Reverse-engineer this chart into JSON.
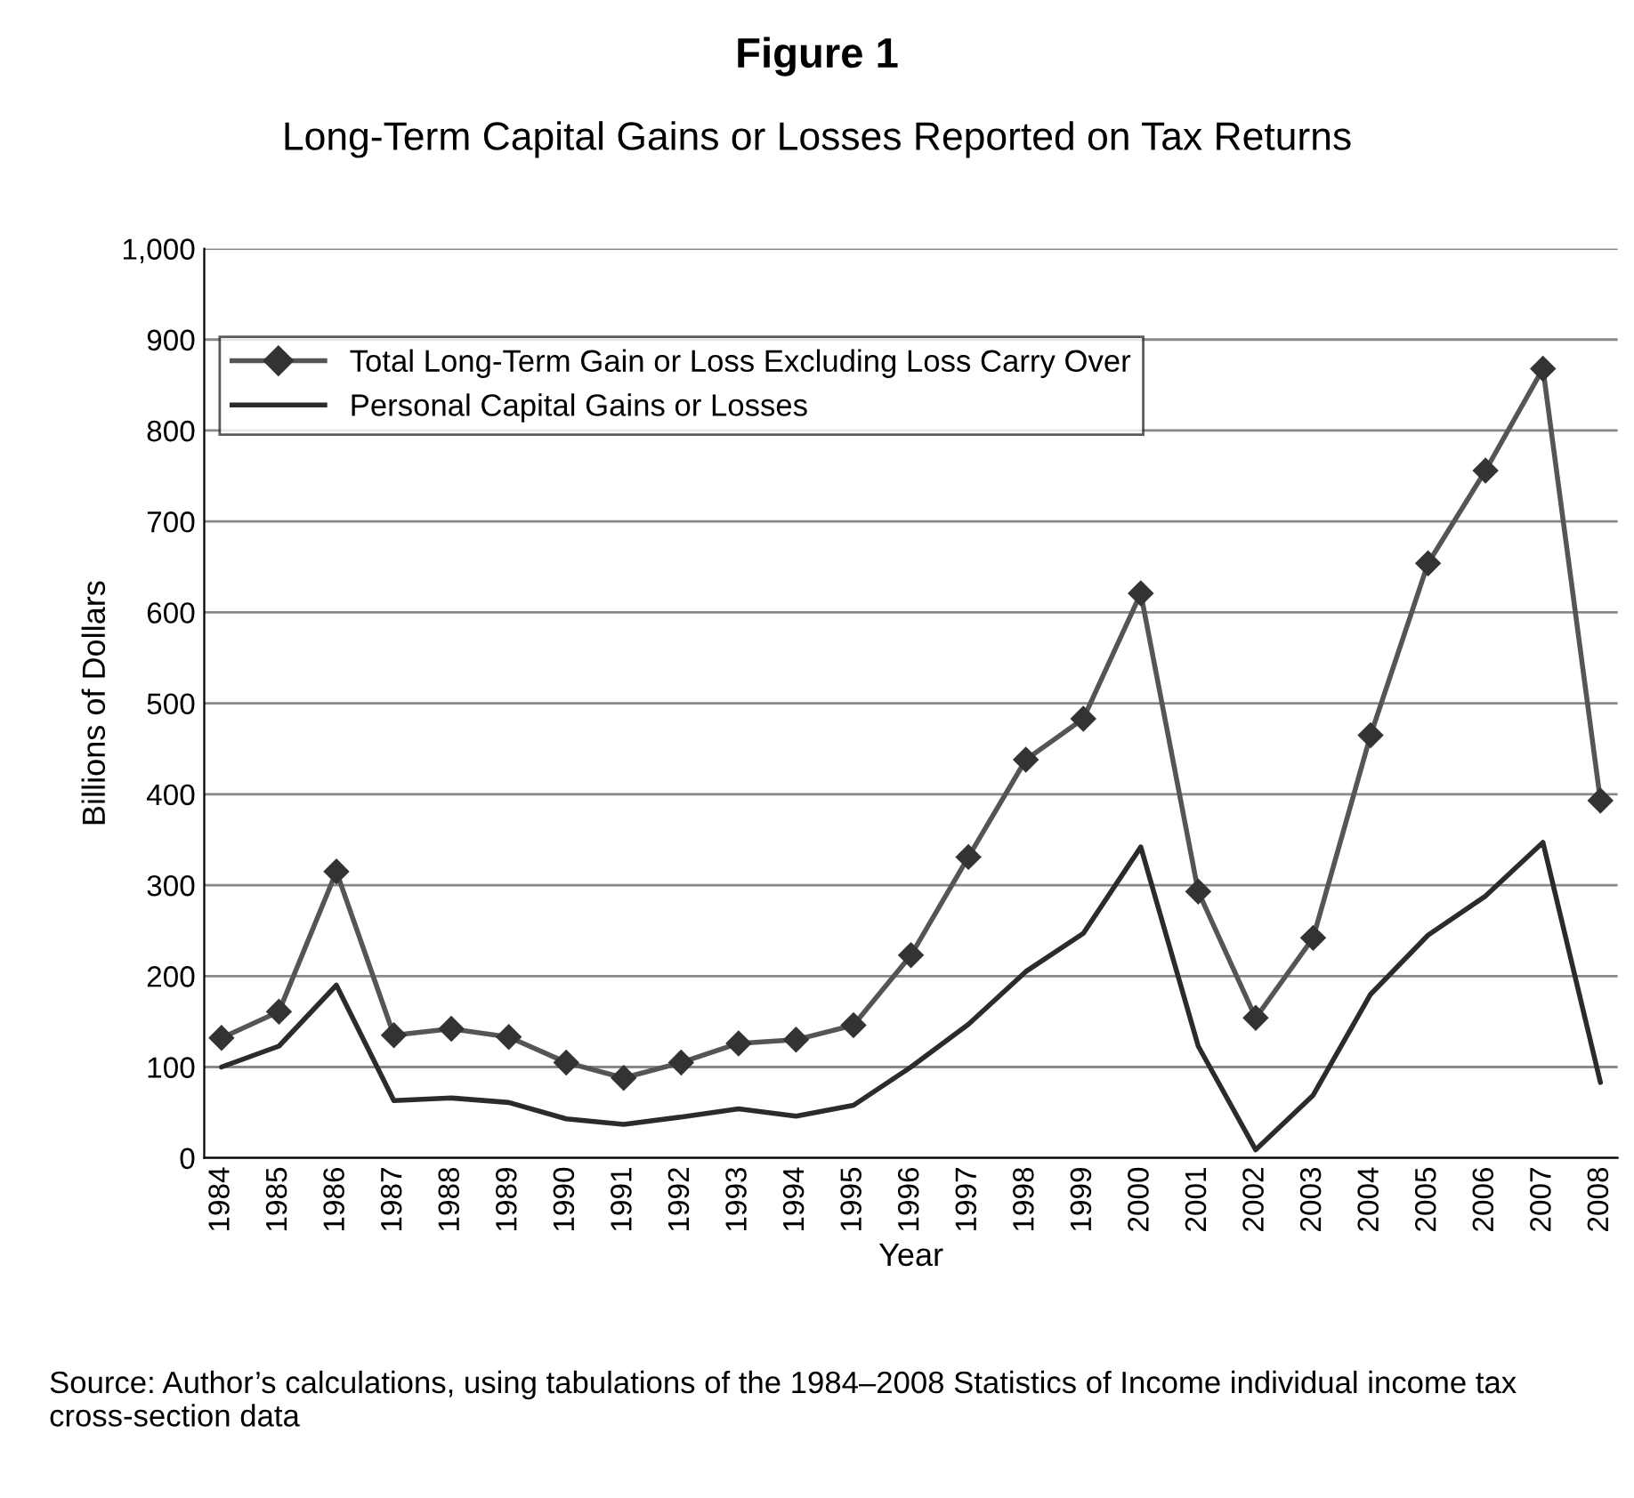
{
  "chart_data": {
    "type": "line",
    "title": "Figure 1",
    "subtitle": "Long-Term Capital Gains or Losses Reported on Tax Returns",
    "xlabel": "Year",
    "ylabel": "Billions of Dollars",
    "categories": [
      "1984",
      "1985",
      "1986",
      "1987",
      "1988",
      "1989",
      "1990",
      "1991",
      "1992",
      "1993",
      "1994",
      "1995",
      "1996",
      "1997",
      "1998",
      "1999",
      "2000",
      "2001",
      "2002",
      "2003",
      "2004",
      "2005",
      "2006",
      "2007",
      "2008"
    ],
    "series": [
      {
        "name": "Total Long-Term Gain or Loss Excluding Loss Carry Over",
        "color": "#555555",
        "marker": "diamond",
        "values": [
          132,
          161,
          315,
          135,
          142,
          133,
          105,
          88,
          105,
          126,
          130,
          146,
          223,
          331,
          438,
          483,
          621,
          293,
          154,
          242,
          465,
          654,
          756,
          868,
          393
        ]
      },
      {
        "name": "Personal Capital Gains or Losses",
        "color": "#2b2b2b",
        "marker": "none",
        "values": [
          100,
          123,
          190,
          63,
          66,
          61,
          43,
          37,
          45,
          54,
          46,
          58,
          100,
          147,
          205,
          247,
          342,
          123,
          9,
          69,
          180,
          245,
          288,
          347,
          83
        ]
      }
    ],
    "ylim": [
      0,
      1000
    ],
    "yticks": [
      0,
      100,
      200,
      300,
      400,
      500,
      600,
      700,
      800,
      900,
      {
        "value": 1000,
        "label": "1,000"
      }
    ],
    "grid": "y",
    "legend": "top left",
    "annotations": [
      "Source: Author’s calculations, using tabulations of the 1984–2008 Statistics of Income individual income tax cross-section data"
    ]
  }
}
